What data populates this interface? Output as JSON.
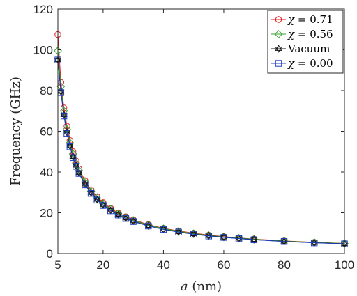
{
  "chart_data": {
    "type": "line",
    "xlabel_italic": "a",
    "xlabel_unit": "(nm)",
    "ylabel": "Frequency (GHz)",
    "xlim": [
      5,
      100
    ],
    "ylim": [
      0,
      120
    ],
    "xticks": [
      5,
      20,
      40,
      60,
      80,
      100
    ],
    "yticks": [
      0,
      20,
      40,
      60,
      80,
      100,
      120
    ],
    "grid": false,
    "legend_position": "top-right",
    "x": [
      5,
      6,
      7,
      8,
      9,
      10,
      11,
      12,
      14,
      16,
      18,
      20,
      22.5,
      25,
      27.5,
      30,
      35,
      40,
      45,
      50,
      55,
      60,
      65,
      70,
      80,
      90,
      100
    ],
    "series": [
      {
        "name": "χ = 0.71",
        "symbol": "χ",
        "value_text": " = 0.71",
        "color": "#e31a1c",
        "marker": "circle",
        "values": [
          107.5,
          84,
          71.5,
          62.5,
          55.5,
          50,
          45.5,
          41.5,
          35.8,
          31.3,
          27.9,
          25,
          22.2,
          19.9,
          18.1,
          16.6,
          14.2,
          12.4,
          11.1,
          10,
          9.05,
          8.3,
          7.65,
          7.1,
          6.2,
          5.5,
          4.95
        ]
      },
      {
        "name": "χ = 0.56",
        "symbol": "χ",
        "value_text": " = 0.56",
        "color": "#33a02c",
        "marker": "diamond",
        "values": [
          99.5,
          82,
          70,
          61,
          54.3,
          48.9,
          44.4,
          40.7,
          35,
          30.6,
          27.2,
          24.5,
          21.8,
          19.6,
          17.8,
          16.3,
          14,
          12.25,
          10.9,
          9.8,
          8.9,
          8.15,
          7.55,
          7,
          6.1,
          5.45,
          4.9
        ]
      },
      {
        "name": "Vacuum",
        "symbol": "",
        "value_text": "Vacuum",
        "color": "#111111",
        "marker": "hexagram",
        "values": [
          95,
          79.5,
          68,
          59.5,
          52.8,
          47.5,
          43.2,
          39.6,
          34,
          29.8,
          26.5,
          23.8,
          21.2,
          19.1,
          17.3,
          15.9,
          13.6,
          11.9,
          10.6,
          9.55,
          8.7,
          7.95,
          7.35,
          6.8,
          5.95,
          5.3,
          4.8
        ]
      },
      {
        "name": "χ = 0.00",
        "symbol": "χ",
        "value_text": " = 0.00",
        "color": "#1f3fbf",
        "marker": "square",
        "values": [
          95,
          79,
          67.5,
          59,
          52.4,
          47.1,
          42.8,
          39.3,
          33.7,
          29.5,
          26.2,
          23.6,
          21,
          18.9,
          17.2,
          15.7,
          13.5,
          11.8,
          10.5,
          9.45,
          8.6,
          7.9,
          7.3,
          6.75,
          5.9,
          5.25,
          4.75
        ]
      }
    ]
  }
}
